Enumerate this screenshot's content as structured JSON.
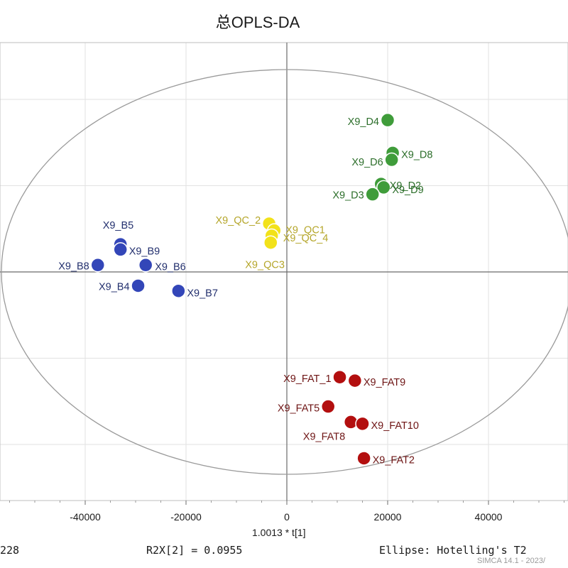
{
  "chart_data": {
    "type": "scatter",
    "title": "总OPLS-DA",
    "xlabel": "1.0013 * t[1]",
    "ylabel": "",
    "xlim": [
      -56700,
      56000
    ],
    "ylim": [
      -1.75,
      1.75
    ],
    "x_ticks": [
      -40000,
      -20000,
      0,
      20000,
      40000
    ],
    "x_tick_labels": [
      "-40000",
      "-20000",
      "0",
      "20000",
      "40000"
    ],
    "grid": true,
    "ellipse": "Hotelling's T2",
    "series": [
      {
        "name": "B",
        "color": "#3346b8",
        "label_color": "#23306e",
        "points": [
          {
            "label": "X9_B5",
            "x": -33000,
            "y": 0.16
          },
          {
            "label": "X9_B9",
            "x": -33000,
            "y": 0.13
          },
          {
            "label": "X9_B6",
            "x": -28000,
            "y": 0.04
          },
          {
            "label": "X9_B8",
            "x": -37500,
            "y": 0.04
          },
          {
            "label": "X9_B4",
            "x": -29500,
            "y": -0.08
          },
          {
            "label": "X9_B7",
            "x": -21500,
            "y": -0.11
          }
        ]
      },
      {
        "name": "QC",
        "color": "#f2e21a",
        "label_color": "#b5a62a",
        "points": [
          {
            "label": "X9_QC_2",
            "x": -3500,
            "y": 0.28
          },
          {
            "label": "X9_QC1",
            "x": -2500,
            "y": 0.24
          },
          {
            "label": "X9_QC_4",
            "x": -3000,
            "y": 0.21
          },
          {
            "label": "X9_QC3",
            "x": -3200,
            "y": 0.17
          }
        ]
      },
      {
        "name": "D",
        "color": "#3f9c3a",
        "label_color": "#2c6e2a",
        "points": [
          {
            "label": "X9_D4",
            "x": 20000,
            "y": 0.88
          },
          {
            "label": "X9_D8",
            "x": 21000,
            "y": 0.69
          },
          {
            "label": "X9_D6",
            "x": 20800,
            "y": 0.65
          },
          {
            "label": "X9_D2",
            "x": 18700,
            "y": 0.51
          },
          {
            "label": "X9_D9",
            "x": 19200,
            "y": 0.49
          },
          {
            "label": "X9_D3",
            "x": 17000,
            "y": 0.45
          }
        ]
      },
      {
        "name": "FAT",
        "color": "#b30f0f",
        "label_color": "#6e1414",
        "points": [
          {
            "label": "X9_FAT_1",
            "x": 10500,
            "y": -0.61
          },
          {
            "label": "X9_FAT9",
            "x": 13500,
            "y": -0.63
          },
          {
            "label": "X9_FAT5",
            "x": 8200,
            "y": -0.78
          },
          {
            "label": "X9_FAT8",
            "x": 12700,
            "y": -0.87
          },
          {
            "label": "X9_FAT10",
            "x": 15000,
            "y": -0.88
          },
          {
            "label": "X9_FAT2",
            "x": 15300,
            "y": -1.08
          }
        ]
      }
    ]
  },
  "footer": {
    "left": "228",
    "mid": "R2X[2] = 0.0955",
    "right": "Ellipse: Hotelling's T2",
    "watermark": "SIMCA 14.1 - 2023/"
  }
}
